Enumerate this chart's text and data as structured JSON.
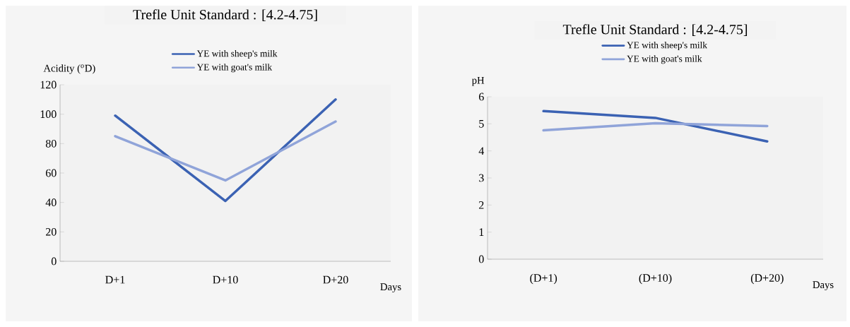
{
  "chart_data": [
    {
      "type": "line",
      "title": "Trefle Unit Standard  : [4.2-4.75]",
      "xlabel": "Days",
      "ylabel": "Acidity ($^{o}$D)",
      "categories": [
        "D+1",
        "D+10",
        "D+20"
      ],
      "series": [
        {
          "name": "YE with sheep's milk",
          "color": "#3b62b3",
          "values": [
            99,
            41,
            110
          ]
        },
        {
          "name": "YE with goat's milk",
          "color": "#90a4d9",
          "values": [
            85,
            55,
            95
          ]
        }
      ],
      "ylim": [
        0,
        120
      ],
      "yticks": [
        0,
        20,
        40,
        60,
        80,
        100,
        120
      ],
      "legend": "top"
    },
    {
      "type": "line",
      "title": "Trefle Unit Standard  : [4.2-4.75]",
      "xlabel": "Days",
      "ylabel": "pH",
      "categories": [
        "(D+1)",
        "(D+10)",
        "(D+20)"
      ],
      "series": [
        {
          "name": "YE with sheep's milk",
          "color": "#3b62b3",
          "values": [
            5.47,
            5.22,
            4.35
          ]
        },
        {
          "name": "YE with goat's milk",
          "color": "#90a4d9",
          "values": [
            4.76,
            5.02,
            4.92
          ]
        }
      ],
      "ylim": [
        0,
        6
      ],
      "yticks": [
        0,
        1,
        2,
        3,
        4,
        5,
        6
      ],
      "legend": "top"
    }
  ]
}
